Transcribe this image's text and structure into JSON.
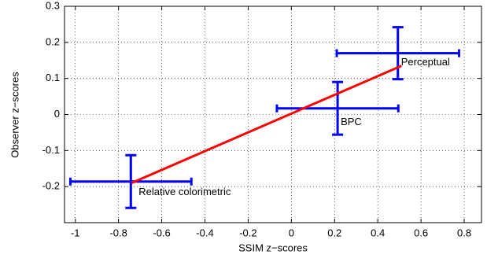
{
  "chart_data": {
    "type": "scatter",
    "xlabel": "SSIM z−scores",
    "ylabel": "Observer z−scores",
    "xlim": [
      -1.05,
      0.88
    ],
    "ylim": [
      -0.3,
      0.3
    ],
    "xticks": [
      -1,
      -0.8,
      -0.6,
      -0.4,
      -0.2,
      0,
      0.2,
      0.4,
      0.6,
      0.8
    ],
    "yticks": [
      -0.2,
      -0.1,
      0,
      0.1,
      0.2,
      0.3
    ],
    "grid": true,
    "series": [
      {
        "type": "errorbar",
        "color": "#0000ff",
        "labels": [
          "Relative colorimetric",
          "BPC",
          "Perceptual"
        ],
        "x": [
          -0.743,
          0.214,
          0.493
        ],
        "values": [
          -0.186,
          0.017,
          0.17
        ],
        "x_errors": [
          0.28,
          0.281,
          0.283
        ],
        "errors": [
          0.073,
          0.073,
          0.072
        ]
      },
      {
        "type": "line",
        "color": "#ff0000",
        "x": [
          -0.74,
          0.51
        ],
        "values": [
          -0.19,
          0.135
        ]
      }
    ]
  }
}
